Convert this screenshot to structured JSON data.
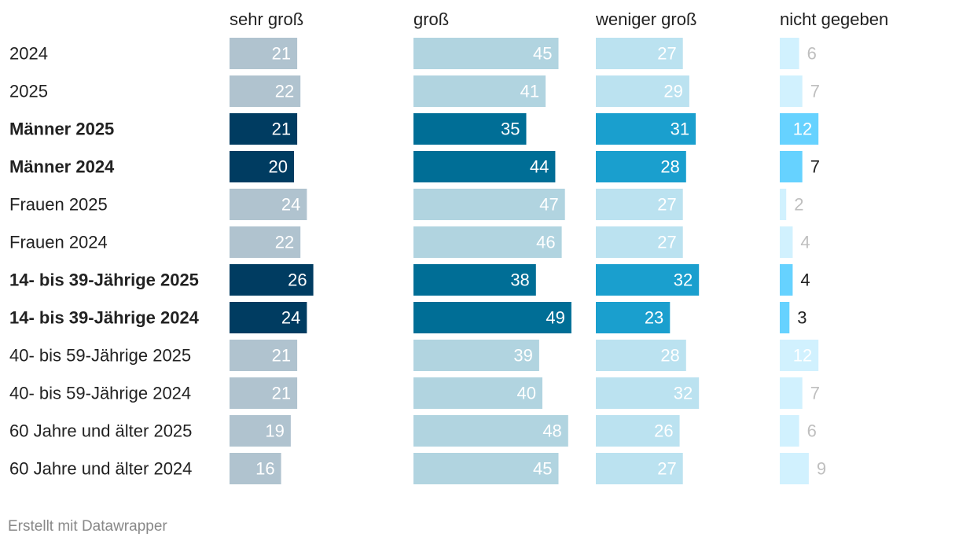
{
  "chart_data": {
    "type": "bar",
    "subtype": "split-bar",
    "title": "",
    "xlabel": "",
    "ylabel": "",
    "column_headers": [
      "sehr groß",
      "groß",
      "weniger groß",
      "nicht gegeben"
    ],
    "categories": [
      "2024",
      "2025",
      "Männer 2025",
      "Männer 2024",
      "Frauen 2025",
      "Frauen 2024",
      "14- bis 39-Jährige 2025",
      "14- bis 39-Jährige 2024",
      "40- bis 59-Jährige 2025",
      "40- bis 59-Jährige 2024",
      "60 Jahre und älter 2025",
      "60 Jahre und älter 2024"
    ],
    "highlighted": [
      false,
      false,
      true,
      true,
      false,
      false,
      true,
      true,
      false,
      false,
      false,
      false
    ],
    "series": [
      {
        "name": "sehr groß",
        "values": [
          21,
          22,
          21,
          20,
          24,
          22,
          26,
          24,
          21,
          21,
          19,
          16
        ]
      },
      {
        "name": "groß",
        "values": [
          45,
          41,
          35,
          44,
          47,
          46,
          38,
          49,
          39,
          40,
          48,
          45
        ]
      },
      {
        "name": "weniger groß",
        "values": [
          27,
          29,
          31,
          28,
          27,
          27,
          32,
          23,
          28,
          32,
          26,
          27
        ]
      },
      {
        "name": "nicht gegeben",
        "values": [
          6,
          7,
          12,
          7,
          2,
          4,
          4,
          3,
          12,
          7,
          6,
          9
        ]
      }
    ]
  },
  "colors": {
    "highlight": [
      "#003c61",
      "#006e96",
      "#1a9fce",
      "#66d2ff"
    ],
    "muted": [
      "#b0c3cf",
      "#b1d4e0",
      "#bbe2f0",
      "#d1f1fe"
    ],
    "label_on_bar": "#ffffff",
    "label_outside_highlight": "#222222",
    "label_outside_muted": "#bfbfbf",
    "row_label": "#222222",
    "header": "#222222",
    "footer": "#888888"
  },
  "footer": {
    "credit": "Erstellt mit Datawrapper"
  }
}
